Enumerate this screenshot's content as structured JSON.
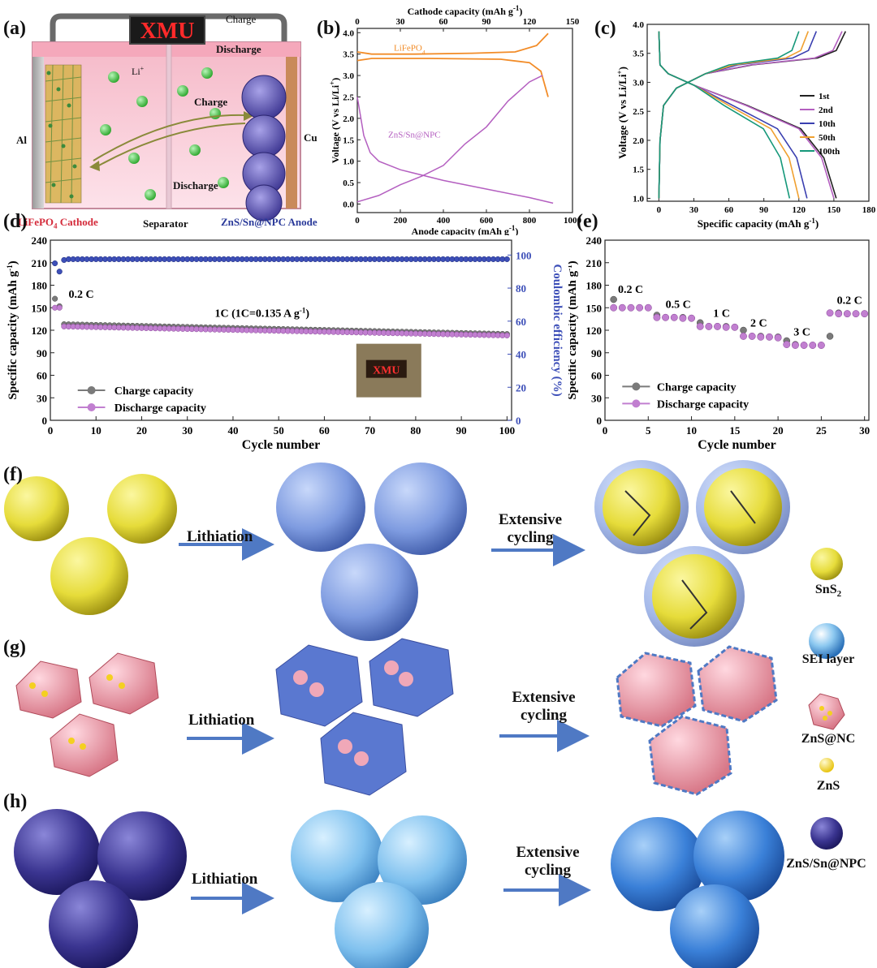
{
  "panels": {
    "a": {
      "label": "(a)",
      "sign": "XMU",
      "charge_top": "Charge",
      "discharge_top": "Discharge",
      "li_ion": "Li",
      "li_sup": "+",
      "charge_mid": "Charge",
      "discharge_mid": "Discharge",
      "al": "Al",
      "cu": "Cu",
      "cathode": "LiFePO",
      "cathode_sub": "4",
      "cathode_suffix": " Cathode",
      "separator": "Separator",
      "anode": "ZnS/Sn@NPC Anode"
    },
    "b": {
      "label": "(b)"
    },
    "c": {
      "label": "(c)"
    },
    "d": {
      "label": "(d)"
    },
    "e": {
      "label": "(e)"
    },
    "f": {
      "label": "(f)",
      "step1": "Lithiation",
      "step2a": "Extensive",
      "step2b": "cycling"
    },
    "g": {
      "label": "(g)",
      "step1": "Lithiation",
      "step2a": "Extensive",
      "step2b": "cycling"
    },
    "h": {
      "label": "(h)",
      "step1": "Lithiation",
      "step2a": "Extensive",
      "step2b": "cycling"
    }
  },
  "legend_schematic": {
    "sns2": "SnS",
    "sns2_sub": "2",
    "sei": "SEI layer",
    "znsnc": "ZnS@NC",
    "zns": "ZnS",
    "znssn": "ZnS/Sn@NPC"
  },
  "colors": {
    "orange": "#f28c28",
    "purple": "#b45fc0",
    "black": "#222222",
    "blue10": "#3a3fb0",
    "orange50": "#f0a030",
    "teal100": "#16987a",
    "gray_marker": "#7a7a7a",
    "violet_marker": "#c17fd0",
    "ce_blue": "#3d4fb8",
    "arrow_blue": "#4f79c4"
  },
  "chart_data": [
    {
      "id": "b",
      "type": "line",
      "x_top_label": "Cathode capacity (mAh g",
      "x_top_ticks": [
        "0",
        "30",
        "60",
        "90",
        "120",
        "150"
      ],
      "x_bottom_label": "Anode capacity (mAh g",
      "x_bottom_ticks": [
        "0",
        "200",
        "400",
        "600",
        "800",
        "1000"
      ],
      "ylabel": "Voltage (V vs Li/Li",
      "y_ticks": [
        "0.0",
        "0.5",
        "1.0",
        "1.5",
        "2.0",
        "2.5",
        "3.0",
        "3.5",
        "4.0"
      ],
      "ylim": [
        -0.2,
        4.1
      ],
      "series": [
        {
          "name": "LiFePO4",
          "axis": "top",
          "label": "LiFePO",
          "label_sub": "4",
          "charge": [
            [
              0,
              3.55
            ],
            [
              10,
              3.5
            ],
            [
              40,
              3.5
            ],
            [
              80,
              3.52
            ],
            [
              110,
              3.55
            ],
            [
              125,
              3.7
            ],
            [
              133,
              3.98
            ]
          ],
          "discharge": [
            [
              0,
              3.35
            ],
            [
              10,
              3.4
            ],
            [
              50,
              3.4
            ],
            [
              100,
              3.38
            ],
            [
              120,
              3.3
            ],
            [
              128,
              3.1
            ],
            [
              133,
              2.5
            ]
          ]
        },
        {
          "name": "ZnS/Sn@NPC",
          "axis": "bottom",
          "label": "ZnS/Sn@NPC",
          "discharge": [
            [
              0,
              2.5
            ],
            [
              30,
              1.6
            ],
            [
              60,
              1.2
            ],
            [
              100,
              1.0
            ],
            [
              200,
              0.8
            ],
            [
              400,
              0.55
            ],
            [
              600,
              0.35
            ],
            [
              800,
              0.15
            ],
            [
              910,
              0.02
            ]
          ],
          "charge": [
            [
              0,
              0.05
            ],
            [
              100,
              0.2
            ],
            [
              200,
              0.45
            ],
            [
              300,
              0.65
            ],
            [
              400,
              0.9
            ],
            [
              500,
              1.4
            ],
            [
              600,
              1.8
            ],
            [
              700,
              2.4
            ],
            [
              800,
              2.85
            ],
            [
              860,
              3.0
            ]
          ]
        }
      ]
    },
    {
      "id": "c",
      "type": "line",
      "xlabel": "Specific capacity (mAh g",
      "x_ticks": [
        "0",
        "30",
        "60",
        "90",
        "120",
        "150",
        "180"
      ],
      "xlim": [
        -10,
        180
      ],
      "ylabel": "Voltage (V vs Li/Li",
      "y_ticks": [
        "1.0",
        "1.5",
        "2.0",
        "2.5",
        "3.0",
        "3.5",
        "4.0"
      ],
      "ylim": [
        0.95,
        4.0
      ],
      "legend": [
        "1st",
        "2nd",
        "10th",
        "50th",
        "100th"
      ],
      "series": [
        {
          "name": "1st",
          "color": "#222222",
          "charge_end": 160,
          "discharge_end": 152
        },
        {
          "name": "2nd",
          "color": "#b45fc0",
          "charge_end": 157,
          "discharge_end": 150
        },
        {
          "name": "10th",
          "color": "#3a3fb0",
          "charge_end": 135,
          "discharge_end": 127
        },
        {
          "name": "50th",
          "color": "#f0a030",
          "charge_end": 128,
          "discharge_end": 120
        },
        {
          "name": "100th",
          "color": "#16987a",
          "charge_end": 120,
          "discharge_end": 112
        }
      ]
    },
    {
      "id": "d",
      "type": "scatter",
      "xlabel": "Cycle number",
      "x_ticks": [
        "0",
        "10",
        "20",
        "30",
        "40",
        "50",
        "60",
        "70",
        "80",
        "90",
        "100"
      ],
      "xlim": [
        0,
        101
      ],
      "ylabel": "Specific capacity (mAh g",
      "y_ticks": [
        "0",
        "30",
        "60",
        "90",
        "120",
        "150",
        "180",
        "210",
        "240"
      ],
      "ylim": [
        0,
        240
      ],
      "y2label": "Coulombic efficiency (%)",
      "y2_ticks": [
        "0",
        "20",
        "40",
        "60",
        "80",
        "100"
      ],
      "y2lim": [
        0,
        109
      ],
      "annotation_rate1": "0.2 C",
      "annotation_rate2": "1C (1C=0.135 A g",
      "annotation_rate2_suffix": ")",
      "legend": [
        "Charge capacity",
        "Discharge capacity"
      ],
      "charge_first": [
        162,
        152,
        128
      ],
      "discharge_first": [
        150,
        150,
        125
      ],
      "charge_start": 128,
      "charge_end": 115,
      "discharge_start": 125,
      "discharge_end": 113,
      "ce_first": [
        95,
        90,
        97
      ],
      "ce_level": 97.5
    },
    {
      "id": "e",
      "type": "scatter",
      "xlabel": "Cycle number",
      "x_ticks": [
        "0",
        "5",
        "10",
        "15",
        "20",
        "25",
        "30"
      ],
      "xlim": [
        0,
        30.5
      ],
      "ylabel": "Specific capacity (mAh g",
      "y_ticks": [
        "0",
        "30",
        "60",
        "90",
        "120",
        "150",
        "180",
        "210",
        "240"
      ],
      "ylim": [
        0,
        240
      ],
      "legend": [
        "Charge capacity",
        "Discharge capacity"
      ],
      "rates": [
        {
          "label": "0.2 C",
          "cycles": [
            1,
            2,
            3,
            4,
            5
          ],
          "charge": [
            161,
            150,
            150,
            150,
            150
          ],
          "discharge": [
            150,
            150,
            150,
            150,
            150
          ]
        },
        {
          "label": "0.5 C",
          "cycles": [
            6,
            7,
            8,
            9,
            10
          ],
          "charge": [
            140,
            137,
            137,
            137,
            136
          ],
          "discharge": [
            137,
            137,
            137,
            136,
            136
          ]
        },
        {
          "label": "1 C",
          "cycles": [
            11,
            12,
            13,
            14,
            15
          ],
          "charge": [
            130,
            125,
            125,
            125,
            124
          ],
          "discharge": [
            125,
            125,
            125,
            124,
            124
          ]
        },
        {
          "label": "2 C",
          "cycles": [
            16,
            17,
            18,
            19,
            20
          ],
          "charge": [
            120,
            112,
            112,
            111,
            111
          ],
          "discharge": [
            112,
            112,
            111,
            111,
            110
          ]
        },
        {
          "label": "3 C",
          "cycles": [
            21,
            22,
            23,
            24,
            25
          ],
          "charge": [
            106,
            101,
            100,
            100,
            100
          ],
          "discharge": [
            101,
            100,
            100,
            100,
            100
          ]
        },
        {
          "label": "0.2 C",
          "cycles": [
            26,
            27,
            28,
            29,
            30
          ],
          "charge": [
            112,
            143,
            142,
            142,
            142
          ],
          "discharge": [
            143,
            142,
            142,
            142,
            142
          ]
        }
      ]
    }
  ]
}
